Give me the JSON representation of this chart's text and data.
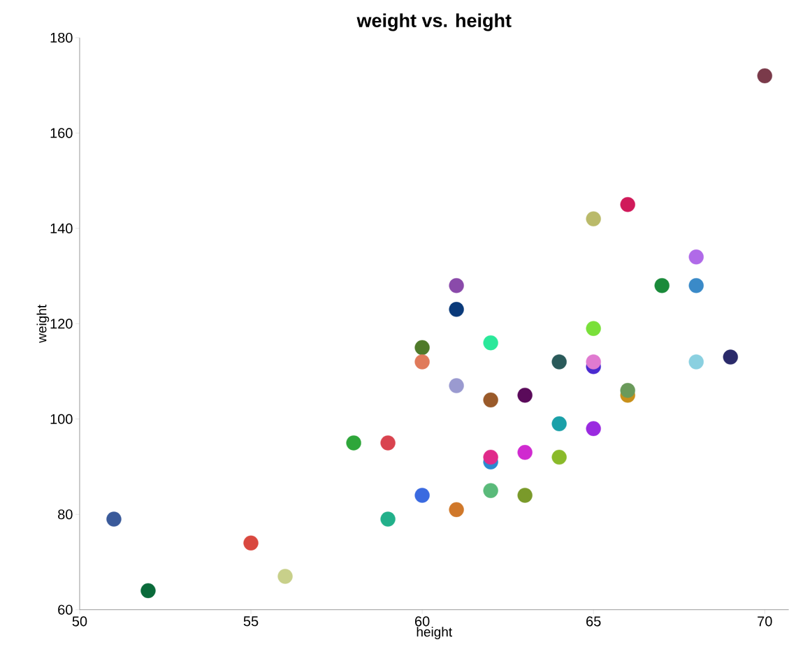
{
  "chart_data": {
    "type": "scatter",
    "title": "weight vs. height",
    "xlabel": "height",
    "ylabel": "weight",
    "x": [
      51,
      52,
      55,
      56,
      58,
      59,
      59,
      60,
      60,
      60,
      61,
      61,
      61,
      61,
      62,
      62,
      62,
      62,
      62,
      63,
      63,
      63,
      64,
      64,
      64,
      65,
      65,
      65,
      65,
      65,
      66,
      66,
      66,
      67,
      68,
      68,
      68,
      69,
      70
    ],
    "values": [
      79,
      64,
      74,
      67,
      95,
      95,
      79,
      115,
      112,
      84,
      128,
      123,
      107,
      81,
      116,
      104,
      91,
      92,
      85,
      105,
      93,
      84,
      112,
      99,
      92,
      142,
      119,
      111,
      112,
      98,
      145,
      105,
      106,
      128,
      134,
      128,
      112,
      113,
      172
    ],
    "colors": [
      "#3a5a9a",
      "#0a6a3a",
      "#d9483f",
      "#c8d08a",
      "#2ea63a",
      "#d9434f",
      "#22b08a",
      "#4f7a2a",
      "#e07a5a",
      "#3a6ae0",
      "#8a4aaa",
      "#0a3a7a",
      "#9a9ad0",
      "#d0782a",
      "#2ae89a",
      "#9a5a2a",
      "#2a8ad0",
      "#e02a8a",
      "#5aba7a",
      "#5a0a5a",
      "#d02ad0",
      "#7a9a2a",
      "#2a5a5a",
      "#1aa0a8",
      "#8aba2a",
      "#baba6a",
      "#7ae03a",
      "#4a2ad0",
      "#e07ad0",
      "#9a2ae0",
      "#d01a5a",
      "#c8901a",
      "#6a9a5a",
      "#1a8a3a",
      "#b06ae8",
      "#3a8ac8",
      "#8ad0e0",
      "#2a2a6a",
      "#7a3a4a"
    ],
    "xlim": [
      50,
      70.7
    ],
    "ylim": [
      60,
      180
    ],
    "xticks": [
      50,
      55,
      60,
      65,
      70
    ],
    "yticks": [
      60,
      80,
      100,
      120,
      140,
      160,
      180
    ],
    "marker": "circle",
    "grid": false
  }
}
